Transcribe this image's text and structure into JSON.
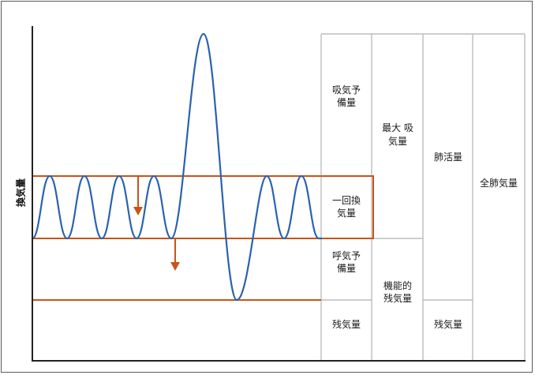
{
  "y_axis_label": "換気量",
  "colors": {
    "wave": "#2a62b0",
    "accent": "#c8541a",
    "grid": "#bdbdbd",
    "axis": "#222222"
  },
  "columns": {
    "col1": {
      "inspiratory_reserve": [
        "吸気予",
        "備量"
      ],
      "tidal_volume": [
        "一回換",
        "気量"
      ],
      "expiratory_reserve": [
        "呼気予",
        "備量"
      ],
      "residual": [
        "残気量"
      ]
    },
    "col2": {
      "inspiratory_capacity": [
        "最大 吸",
        "気量"
      ],
      "functional_residual": [
        "機能的",
        "残気量"
      ]
    },
    "col3": {
      "vital_capacity": [
        "肺活量"
      ],
      "residual": [
        "残気量"
      ]
    },
    "col4": {
      "total_lung_capacity": [
        "全肺気量"
      ]
    }
  }
}
